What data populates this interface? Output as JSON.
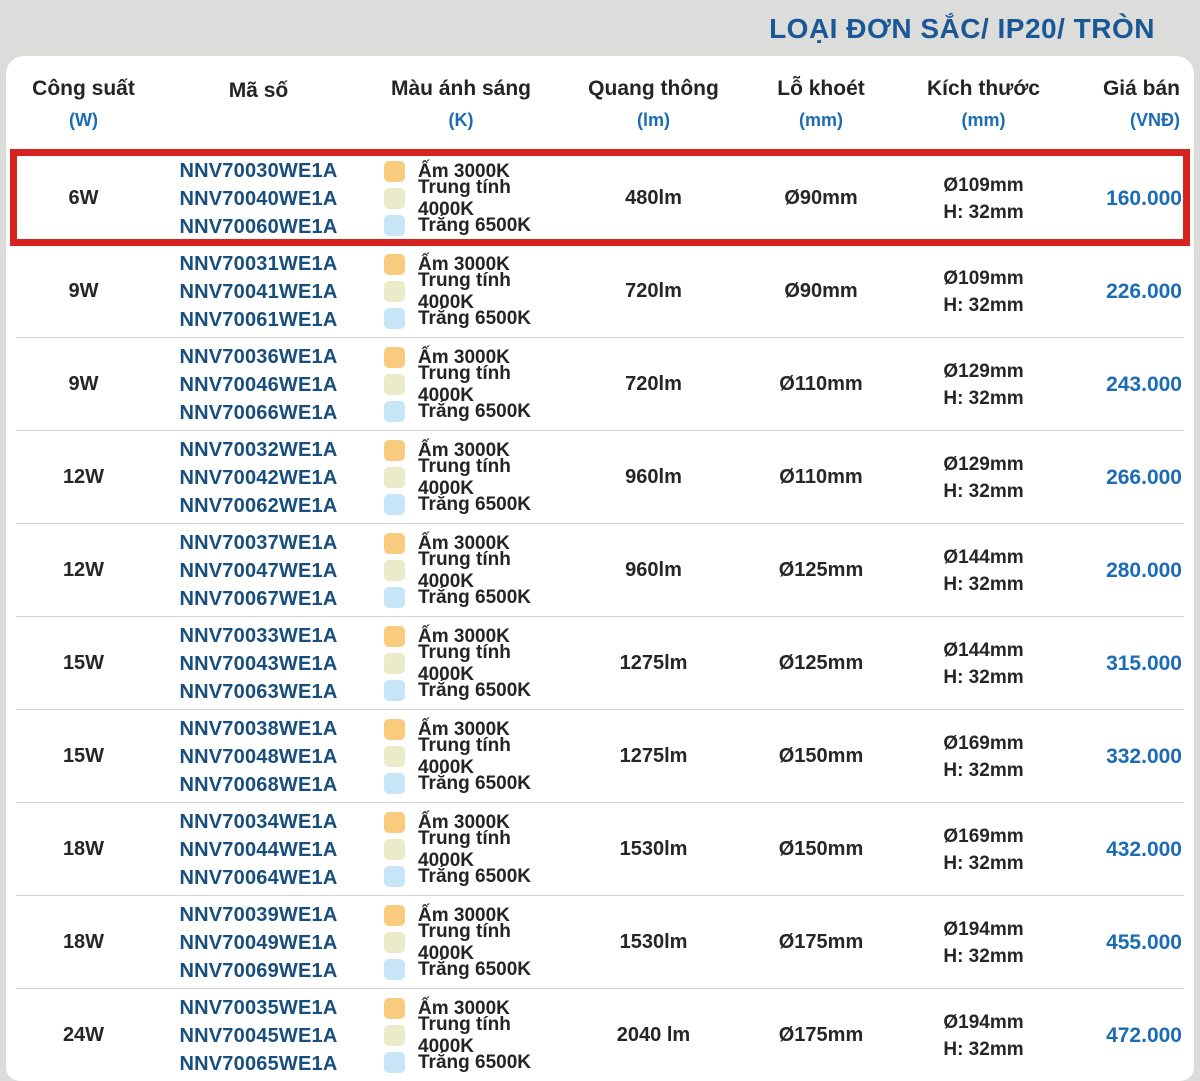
{
  "title": "LOẠI ĐƠN SẮC/ IP20/ TRÒN",
  "colors": {
    "page_background": "#dcdcda",
    "card_background": "#ffffff",
    "title_blue": "#1a5796",
    "code_navy": "#174e7d",
    "accent_blue": "#1c6cb5",
    "body_text": "#262626",
    "separator": "#d2d2d2",
    "highlight_red": "#d5231f"
  },
  "table": {
    "columns": [
      {
        "label": "Công suất",
        "unit": "(W)"
      },
      {
        "label": "Mã số",
        "unit": ""
      },
      {
        "label": "Màu ánh sáng",
        "unit": "(K)"
      },
      {
        "label": "Quang thông",
        "unit": "(lm)"
      },
      {
        "label": "Lỗ khoét",
        "unit": "(mm)"
      },
      {
        "label": "Kích thước",
        "unit": "(mm)"
      },
      {
        "label": "Giá bán",
        "unit": "(VNĐ)"
      }
    ],
    "color_legend": [
      {
        "label": "Ấm 3000K",
        "color": "#f8cb7d",
        "icon": "warm-color-swatch"
      },
      {
        "label": "Trung tính 4000K",
        "color": "#ebebc9",
        "icon": "neutral-color-swatch"
      },
      {
        "label": "Trắng 6500K",
        "color": "#c6e5f6",
        "icon": "cool-color-swatch"
      }
    ],
    "rows": [
      {
        "power": "6W",
        "codes": [
          "NNV70030WE1A",
          "NNV70040WE1A",
          "NNV70060WE1A"
        ],
        "lumen": "480lm",
        "cutout": "Ø90mm",
        "size": [
          "Ø109mm",
          "H: 32mm"
        ],
        "price": "160.000",
        "highlighted": true
      },
      {
        "power": "9W",
        "codes": [
          "NNV70031WE1A",
          "NNV70041WE1A",
          "NNV70061WE1A"
        ],
        "lumen": "720lm",
        "cutout": "Ø90mm",
        "size": [
          "Ø109mm",
          "H: 32mm"
        ],
        "price": "226.000",
        "highlighted": false
      },
      {
        "power": "9W",
        "codes": [
          "NNV70036WE1A",
          "NNV70046WE1A",
          "NNV70066WE1A"
        ],
        "lumen": "720lm",
        "cutout": "Ø110mm",
        "size": [
          "Ø129mm",
          "H: 32mm"
        ],
        "price": "243.000",
        "highlighted": false
      },
      {
        "power": "12W",
        "codes": [
          "NNV70032WE1A",
          "NNV70042WE1A",
          "NNV70062WE1A"
        ],
        "lumen": "960lm",
        "cutout": "Ø110mm",
        "size": [
          "Ø129mm",
          "H: 32mm"
        ],
        "price": "266.000",
        "highlighted": false
      },
      {
        "power": "12W",
        "codes": [
          "NNV70037WE1A",
          "NNV70047WE1A",
          "NNV70067WE1A"
        ],
        "lumen": "960lm",
        "cutout": "Ø125mm",
        "size": [
          "Ø144mm",
          "H: 32mm"
        ],
        "price": "280.000",
        "highlighted": false
      },
      {
        "power": "15W",
        "codes": [
          "NNV70033WE1A",
          "NNV70043WE1A",
          "NNV70063WE1A"
        ],
        "lumen": "1275lm",
        "cutout": "Ø125mm",
        "size": [
          "Ø144mm",
          "H: 32mm"
        ],
        "price": "315.000",
        "highlighted": false
      },
      {
        "power": "15W",
        "codes": [
          "NNV70038WE1A",
          "NNV70048WE1A",
          "NNV70068WE1A"
        ],
        "lumen": "1275lm",
        "cutout": "Ø150mm",
        "size": [
          "Ø169mm",
          "H: 32mm"
        ],
        "price": "332.000",
        "highlighted": false
      },
      {
        "power": "18W",
        "codes": [
          "NNV70034WE1A",
          "NNV70044WE1A",
          "NNV70064WE1A"
        ],
        "lumen": "1530lm",
        "cutout": "Ø150mm",
        "size": [
          "Ø169mm",
          "H: 32mm"
        ],
        "price": "432.000",
        "highlighted": false
      },
      {
        "power": "18W",
        "codes": [
          "NNV70039WE1A",
          "NNV70049WE1A",
          "NNV70069WE1A"
        ],
        "lumen": "1530lm",
        "cutout": "Ø175mm",
        "size": [
          "Ø194mm",
          "H: 32mm"
        ],
        "price": "455.000",
        "highlighted": false
      },
      {
        "power": "24W",
        "codes": [
          "NNV70035WE1A",
          "NNV70045WE1A",
          "NNV70065WE1A"
        ],
        "lumen": "2040 lm",
        "cutout": "Ø175mm",
        "size": [
          "Ø194mm",
          "H: 32mm"
        ],
        "price": "472.000",
        "highlighted": false
      }
    ]
  }
}
